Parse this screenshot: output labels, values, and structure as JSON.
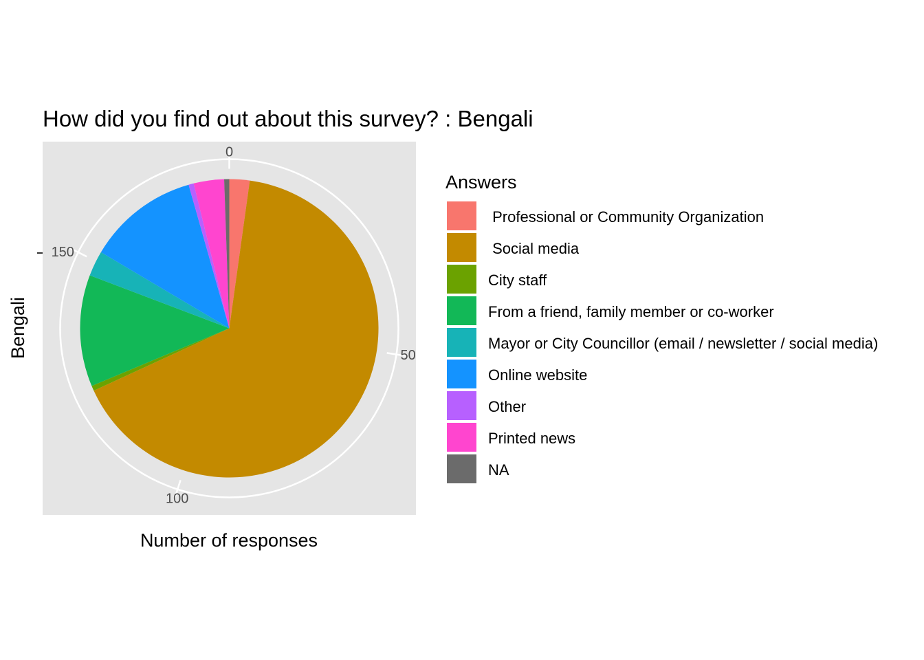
{
  "chart_data": {
    "type": "pie",
    "title": "How did you find out about this survey? : Bengali",
    "xlabel": "Number of responses",
    "ylabel": "Bengali",
    "theta_ticks": [
      "0",
      "50",
      "100",
      "150"
    ],
    "theta_tick_values": [
      0,
      50,
      100,
      150
    ],
    "total": 182,
    "grid": true,
    "legend_title": "Answers",
    "legend_position": "right",
    "slices": [
      {
        "label": " Professional or Community Organization",
        "value": 4,
        "color": "#F8766D"
      },
      {
        "label": " Social media",
        "value": 120,
        "color": "#C38A00"
      },
      {
        "label": "City staff",
        "value": 1,
        "color": "#6BA200"
      },
      {
        "label": "From a friend, family member or co-worker",
        "value": 22,
        "color": "#12B857"
      },
      {
        "label": "Mayor or City Councillor (email / newsletter / social media)",
        "value": 5,
        "color": "#17B3B7"
      },
      {
        "label": "Online website",
        "value": 22,
        "color": "#1493FF"
      },
      {
        "label": "Other",
        "value": 1,
        "color": "#B760FF"
      },
      {
        "label": "Printed news",
        "value": 6,
        "color": "#FF45CF"
      },
      {
        "label": "NA",
        "value": 1,
        "color": "#6B6B6B"
      }
    ]
  }
}
